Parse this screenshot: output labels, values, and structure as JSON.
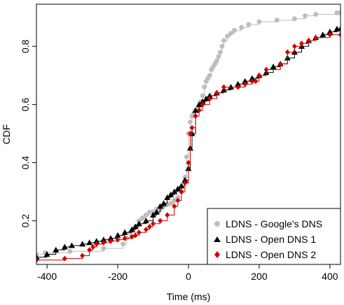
{
  "chart_data": {
    "type": "line",
    "title": "",
    "xlabel": "Time (ms)",
    "ylabel": "CDF",
    "xlim": [
      -430,
      430
    ],
    "ylim": [
      0.05,
      0.945
    ],
    "xticks": [
      -400,
      -200,
      0,
      200,
      400
    ],
    "xtick_labels": [
      "-400",
      "-200",
      "0",
      "200",
      "400"
    ],
    "yticks": [
      0.2,
      0.4,
      0.6,
      0.8
    ],
    "ytick_labels": [
      "0.2",
      "0.4",
      "0.6",
      "0.8"
    ],
    "legend_position": "bottom-right",
    "series": [
      {
        "name": "LDNS - Google's DNS",
        "color": "#bebebe",
        "marker": "circle",
        "x": [
          -430,
          -405,
          -335,
          -240,
          -185,
          -175,
          -165,
          -150,
          -140,
          -130,
          -120,
          -110,
          -100,
          -90,
          -80,
          -70,
          -60,
          -50,
          -40,
          -30,
          -20,
          -10,
          -5,
          0,
          5,
          10,
          15,
          20,
          25,
          30,
          35,
          40,
          45,
          50,
          55,
          60,
          65,
          70,
          75,
          80,
          85,
          90,
          95,
          100,
          110,
          120,
          130,
          150,
          170,
          200,
          250,
          300,
          330,
          360,
          420,
          430
        ],
        "y": [
          0.085,
          0.09,
          0.095,
          0.105,
          0.12,
          0.14,
          0.16,
          0.18,
          0.2,
          0.21,
          0.22,
          0.23,
          0.23,
          0.24,
          0.24,
          0.25,
          0.255,
          0.26,
          0.27,
          0.28,
          0.3,
          0.35,
          0.42,
          0.5,
          0.54,
          0.56,
          0.57,
          0.58,
          0.58,
          0.59,
          0.61,
          0.63,
          0.66,
          0.68,
          0.69,
          0.7,
          0.72,
          0.73,
          0.74,
          0.75,
          0.765,
          0.78,
          0.8,
          0.82,
          0.835,
          0.845,
          0.855,
          0.865,
          0.875,
          0.885,
          0.89,
          0.895,
          0.905,
          0.91,
          0.915,
          0.915
        ]
      },
      {
        "name": "LDNS - Open DNS 1",
        "color": "#000000",
        "marker": "triangle",
        "x": [
          -430,
          -400,
          -375,
          -350,
          -330,
          -300,
          -280,
          -260,
          -240,
          -220,
          -200,
          -180,
          -160,
          -150,
          -140,
          -120,
          -100,
          -90,
          -80,
          -70,
          -60,
          -50,
          -40,
          -30,
          -20,
          -10,
          0,
          5,
          10,
          20,
          30,
          40,
          50,
          60,
          80,
          100,
          120,
          140,
          160,
          180,
          200,
          220,
          240,
          260,
          280,
          300,
          320,
          340,
          360,
          380,
          400,
          420,
          430
        ],
        "y": [
          0.075,
          0.085,
          0.1,
          0.11,
          0.115,
          0.12,
          0.125,
          0.13,
          0.135,
          0.14,
          0.15,
          0.16,
          0.17,
          0.18,
          0.19,
          0.2,
          0.22,
          0.23,
          0.25,
          0.26,
          0.28,
          0.29,
          0.3,
          0.31,
          0.32,
          0.34,
          0.38,
          0.45,
          0.5,
          0.58,
          0.6,
          0.61,
          0.62,
          0.63,
          0.64,
          0.65,
          0.66,
          0.67,
          0.68,
          0.69,
          0.7,
          0.71,
          0.73,
          0.74,
          0.76,
          0.78,
          0.8,
          0.82,
          0.83,
          0.84,
          0.85,
          0.86,
          0.86
        ]
      },
      {
        "name": "LDNS - Open DNS 2",
        "color": "#d10000",
        "marker": "diamond",
        "x": [
          -430,
          -350,
          -300,
          -280,
          -270,
          -260,
          -240,
          -220,
          -200,
          -180,
          -160,
          -150,
          -140,
          -120,
          -110,
          -100,
          -80,
          -60,
          -40,
          -30,
          -20,
          -10,
          0,
          5,
          10,
          20,
          30,
          40,
          60,
          80,
          100,
          140,
          160,
          180,
          190,
          200,
          220,
          260,
          280,
          300,
          320,
          340,
          360,
          400,
          430
        ],
        "y": [
          0.065,
          0.07,
          0.08,
          0.1,
          0.11,
          0.12,
          0.125,
          0.13,
          0.135,
          0.14,
          0.145,
          0.15,
          0.16,
          0.17,
          0.18,
          0.19,
          0.2,
          0.22,
          0.25,
          0.27,
          0.3,
          0.33,
          0.4,
          0.5,
          0.52,
          0.56,
          0.58,
          0.6,
          0.62,
          0.64,
          0.66,
          0.66,
          0.67,
          0.68,
          0.68,
          0.7,
          0.72,
          0.74,
          0.78,
          0.8,
          0.81,
          0.82,
          0.83,
          0.84,
          0.84
        ]
      }
    ]
  }
}
